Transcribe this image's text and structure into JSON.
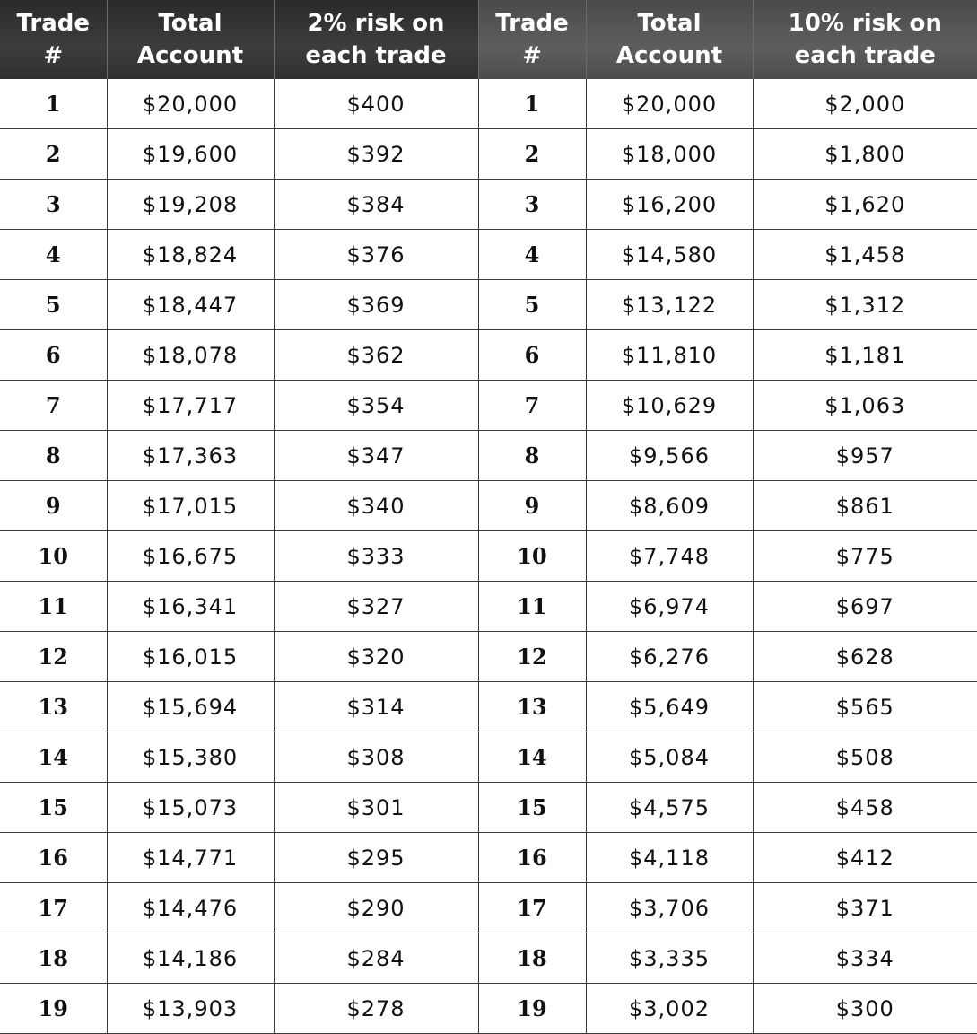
{
  "headers": {
    "left": {
      "trade_line1": "Trade",
      "trade_line2": "#",
      "total_line1": "Total",
      "total_line2": "Account",
      "risk_line1": "2% risk on",
      "risk_line2": "each trade"
    },
    "right": {
      "trade_line1": "Trade",
      "trade_line2": "#",
      "total_line1": "Total",
      "total_line2": "Account",
      "risk_line1": "10% risk on",
      "risk_line2": "each trade"
    }
  },
  "rows": [
    {
      "trade": "1",
      "left_total": "$20,000",
      "left_risk": "$400",
      "right_trade": "1",
      "right_total": "$20,000",
      "right_risk": "$2,000"
    },
    {
      "trade": "2",
      "left_total": "$19,600",
      "left_risk": "$392",
      "right_trade": "2",
      "right_total": "$18,000",
      "right_risk": "$1,800"
    },
    {
      "trade": "3",
      "left_total": "$19,208",
      "left_risk": "$384",
      "right_trade": "3",
      "right_total": "$16,200",
      "right_risk": "$1,620"
    },
    {
      "trade": "4",
      "left_total": "$18,824",
      "left_risk": "$376",
      "right_trade": "4",
      "right_total": "$14,580",
      "right_risk": "$1,458"
    },
    {
      "trade": "5",
      "left_total": "$18,447",
      "left_risk": "$369",
      "right_trade": "5",
      "right_total": "$13,122",
      "right_risk": "$1,312"
    },
    {
      "trade": "6",
      "left_total": "$18,078",
      "left_risk": "$362",
      "right_trade": "6",
      "right_total": "$11,810",
      "right_risk": "$1,181"
    },
    {
      "trade": "7",
      "left_total": "$17,717",
      "left_risk": "$354",
      "right_trade": "7",
      "right_total": "$10,629",
      "right_risk": "$1,063"
    },
    {
      "trade": "8",
      "left_total": "$17,363",
      "left_risk": "$347",
      "right_trade": "8",
      "right_total": "$9,566",
      "right_risk": "$957"
    },
    {
      "trade": "9",
      "left_total": "$17,015",
      "left_risk": "$340",
      "right_trade": "9",
      "right_total": "$8,609",
      "right_risk": "$861"
    },
    {
      "trade": "10",
      "left_total": "$16,675",
      "left_risk": "$333",
      "right_trade": "10",
      "right_total": "$7,748",
      "right_risk": "$775"
    },
    {
      "trade": "11",
      "left_total": "$16,341",
      "left_risk": "$327",
      "right_trade": "11",
      "right_total": "$6,974",
      "right_risk": "$697"
    },
    {
      "trade": "12",
      "left_total": "$16,015",
      "left_risk": "$320",
      "right_trade": "12",
      "right_total": "$6,276",
      "right_risk": "$628"
    },
    {
      "trade": "13",
      "left_total": "$15,694",
      "left_risk": "$314",
      "right_trade": "13",
      "right_total": "$5,649",
      "right_risk": "$565"
    },
    {
      "trade": "14",
      "left_total": "$15,380",
      "left_risk": "$308",
      "right_trade": "14",
      "right_total": "$5,084",
      "right_risk": "$508"
    },
    {
      "trade": "15",
      "left_total": "$15,073",
      "left_risk": "$301",
      "right_trade": "15",
      "right_total": "$4,575",
      "right_risk": "$458"
    },
    {
      "trade": "16",
      "left_total": "$14,771",
      "left_risk": "$295",
      "right_trade": "16",
      "right_total": "$4,118",
      "right_risk": "$412"
    },
    {
      "trade": "17",
      "left_total": "$14,476",
      "left_risk": "$290",
      "right_trade": "17",
      "right_total": "$3,706",
      "right_risk": "$371"
    },
    {
      "trade": "18",
      "left_total": "$14,186",
      "left_risk": "$284",
      "right_trade": "18",
      "right_total": "$3,335",
      "right_risk": "$334"
    },
    {
      "trade": "19",
      "left_total": "$13,903",
      "left_risk": "$278",
      "right_trade": "19",
      "right_total": "$3,002",
      "right_risk": "$300"
    }
  ]
}
